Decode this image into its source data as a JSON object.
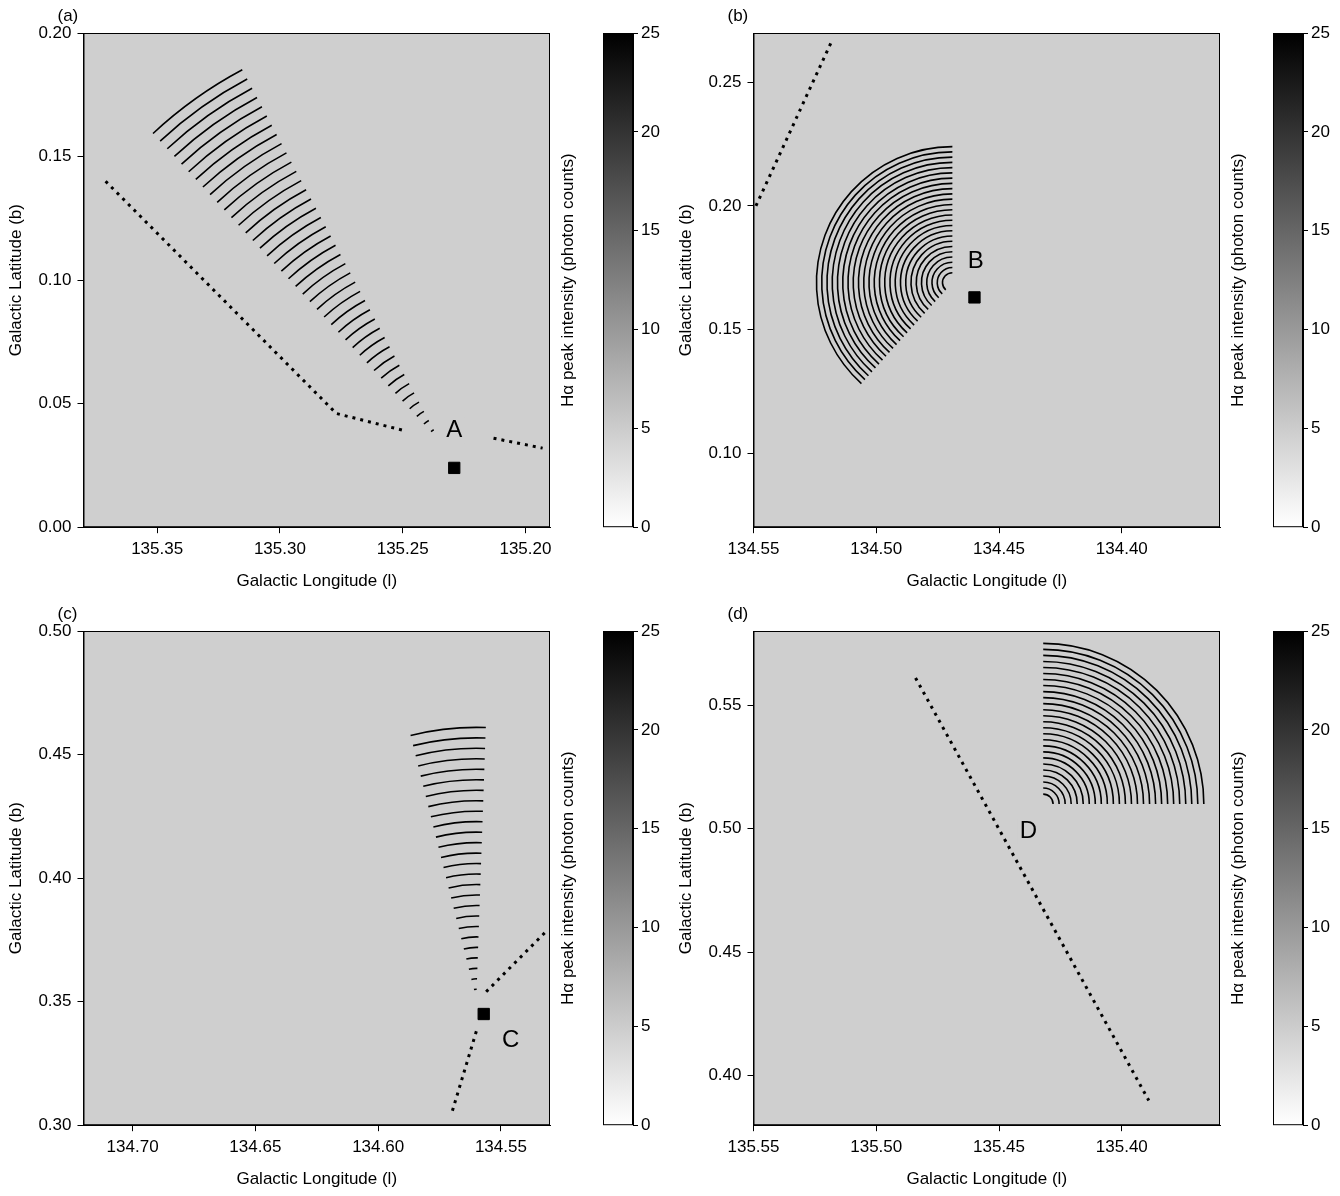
{
  "chart_data": [
    {
      "type": "scatter",
      "panel": "(a)",
      "xlabel": "Galactic Longitude (l)",
      "ylabel": "Galactic Latitude (b)",
      "xlim": [
        135.38,
        135.19
      ],
      "ylim": [
        0,
        0.2
      ],
      "xticks": [
        135.35,
        {
          "value": 135.3,
          "label": "135.30"
        },
        135.25,
        {
          "value": 135.2,
          "label": "135.20"
        }
      ],
      "yticks": [
        {
          "value": 0,
          "label": "0.00"
        },
        0.05,
        {
          "value": 0.1,
          "label": "0.10"
        },
        0.15,
        {
          "value": 0.2,
          "label": "0.20"
        }
      ],
      "grid": false,
      "colorbar": {
        "label": "Hα peak intensity (photon counts)",
        "range": [
          0,
          25
        ],
        "ticks": [
          0,
          5,
          10,
          15,
          20,
          25
        ],
        "colors": [
          "#ffffff",
          "#000000"
        ]
      },
      "lines": [
        {
          "points": [
            [
              135.371,
              0.14
            ],
            [
              135.277,
              0.046
            ],
            [
              135.249,
              0.039
            ]
          ],
          "line_style": "dotted",
          "color": "#000000"
        },
        {
          "points": [
            [
              135.213,
              0.036
            ],
            [
              135.193,
              0.032
            ]
          ],
          "line_style": "dotted",
          "color": "#000000"
        }
      ],
      "arcs": {
        "center": [
          135.235,
          0.035
        ],
        "r_min": 0.005,
        "r_max": 0.17,
        "count": 40,
        "angles": [
          118,
          133
        ],
        "color": "#000000"
      },
      "markers": [
        {
          "l": 135.229,
          "b": 0.024,
          "marker": "square",
          "color": "#000000"
        }
      ],
      "annotations": [
        {
          "text": "A",
          "l": 135.229,
          "b": 0.039
        }
      ]
    },
    {
      "type": "scatter",
      "panel": "(b)",
      "xlabel": "Galactic Longitude (l)",
      "ylabel": "Galactic Latitude (b)",
      "xlim": [
        134.55,
        134.36
      ],
      "ylim": [
        0.07,
        0.27
      ],
      "xticks": [
        134.55,
        {
          "value": 134.5,
          "label": "134.50"
        },
        134.45,
        {
          "value": 134.4,
          "label": "134.40"
        }
      ],
      "yticks": [
        {
          "value": 0.1,
          "label": "0.10"
        },
        0.15,
        {
          "value": 0.2,
          "label": "0.20"
        },
        0.25
      ],
      "grid": false,
      "colorbar": {
        "label": "Hα peak intensity (photon counts)",
        "range": [
          0,
          25
        ],
        "ticks": [
          0,
          5,
          10,
          15,
          20,
          25
        ],
        "colors": [
          "#ffffff",
          "#000000"
        ]
      },
      "lines": [
        {
          "points": [
            [
              134.549,
              0.2
            ],
            [
              134.518,
              0.267
            ]
          ],
          "line_style": "dotted",
          "color": "#000000"
        }
      ],
      "arcs": {
        "center": [
          134.469,
          0.169
        ],
        "r_min": 0.004,
        "r_max": 0.055,
        "count": 25,
        "angles": [
          90,
          228
        ],
        "color": "#000000"
      },
      "markers": [
        {
          "l": 134.46,
          "b": 0.163,
          "marker": "square",
          "color": "#000000"
        }
      ],
      "annotations": [
        {
          "text": "B",
          "l": 134.4595,
          "b": 0.1775
        }
      ]
    },
    {
      "type": "scatter",
      "panel": "(c)",
      "xlabel": "Galactic Longitude (l)",
      "ylabel": "Galactic Latitude (b)",
      "xlim": [
        134.72,
        134.53
      ],
      "ylim": [
        0.3,
        0.5
      ],
      "xticks": [
        {
          "value": 134.7,
          "label": "134.70"
        },
        134.65,
        {
          "value": 134.6,
          "label": "134.60"
        },
        134.55
      ],
      "yticks": [
        {
          "value": 0.3,
          "label": "0.30"
        },
        0.35,
        {
          "value": 0.4,
          "label": "0.40"
        },
        0.45,
        {
          "value": 0.5,
          "label": "0.50"
        }
      ],
      "grid": false,
      "colorbar": {
        "label": "Hα peak intensity (photon counts)",
        "range": [
          0,
          25
        ],
        "ticks": [
          0,
          5,
          10,
          15,
          20,
          25
        ],
        "colors": [
          "#ffffff",
          "#000000"
        ]
      },
      "lines": [
        {
          "points": [
            [
              134.556,
              0.354
            ],
            [
              134.532,
              0.378
            ]
          ],
          "line_style": "dotted",
          "color": "#000000"
        },
        {
          "points": [
            [
              134.56,
              0.338
            ],
            [
              134.57,
              0.305
            ]
          ],
          "line_style": "dotted",
          "color": "#000000"
        }
      ],
      "arcs": {
        "center": [
          134.56,
          0.351
        ],
        "r_min": 0.004,
        "r_max": 0.11,
        "count": 26,
        "angles": [
          88,
          104
        ],
        "color": "#000000"
      },
      "markers": [
        {
          "l": 134.557,
          "b": 0.345,
          "marker": "square",
          "color": "#000000"
        }
      ],
      "annotations": [
        {
          "text": "C",
          "l": 134.546,
          "b": 0.3345
        }
      ]
    },
    {
      "type": "scatter",
      "panel": "(d)",
      "xlabel": "Galactic Longitude (l)",
      "ylabel": "Galactic Latitude (b)",
      "xlim": [
        135.55,
        135.36
      ],
      "ylim": [
        0.38,
        0.58
      ],
      "xticks": [
        135.55,
        {
          "value": 135.5,
          "label": "135.50"
        },
        135.45,
        {
          "value": 135.4,
          "label": "135.40"
        }
      ],
      "yticks": [
        {
          "value": 0.4,
          "label": "0.40"
        },
        0.45,
        {
          "value": 0.5,
          "label": "0.50"
        },
        0.55
      ],
      "grid": false,
      "colorbar": {
        "label": "Hα peak intensity (photon counts)",
        "range": [
          0,
          25
        ],
        "ticks": [
          0,
          5,
          10,
          15,
          20,
          25
        ],
        "colors": [
          "#ffffff",
          "#000000"
        ]
      },
      "lines": [
        {
          "points": [
            [
              135.484,
              0.561
            ],
            [
              135.389,
              0.39
            ]
          ],
          "line_style": "dotted",
          "color": "#000000"
        }
      ],
      "arcs": {
        "center": [
          135.432,
          0.51
        ],
        "r_min": 0.004,
        "r_max": 0.065,
        "count": 26,
        "angles": [
          0,
          90
        ],
        "color": "#000000"
      },
      "annotations": [
        {
          "text": "D",
          "l": 135.438,
          "b": 0.499
        }
      ]
    }
  ]
}
